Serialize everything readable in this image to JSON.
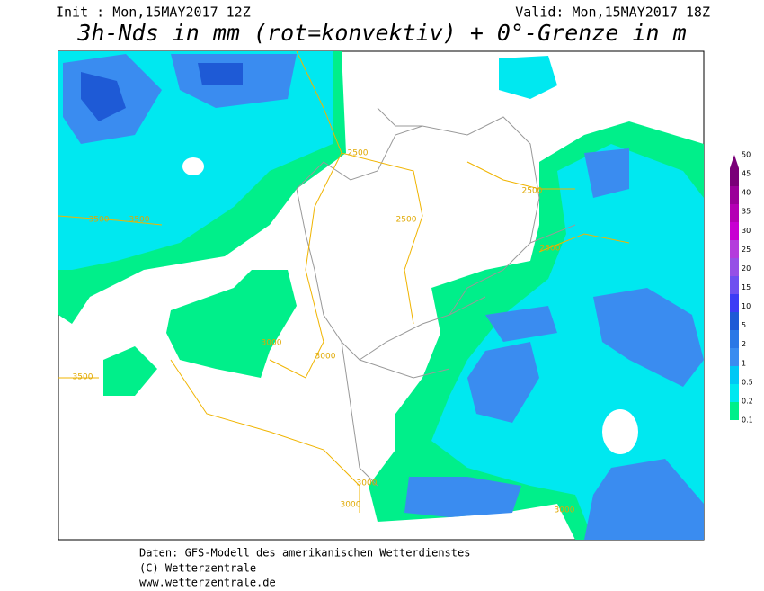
{
  "header": {
    "init": "Init : Mon,15MAY2017 12Z",
    "valid": "Valid: Mon,15MAY2017 18Z",
    "title": "3h-Nds in mm (rot=konvektiv) + 0°-Grenze in m"
  },
  "isoline_labels": [
    "2500",
    "2500",
    "2500",
    "2500",
    "3500",
    "3500",
    "3000",
    "3000",
    "3500",
    "3000",
    "3000",
    "3000"
  ],
  "legend": {
    "labels": [
      "50",
      "45",
      "40",
      "35",
      "30",
      "25",
      "20",
      "15",
      "10",
      "5",
      "2",
      "1",
      "0.5",
      "0.2",
      "0.1"
    ],
    "colors": [
      "#7a0078",
      "#9a0099",
      "#b400b4",
      "#c800d2",
      "#b43cdc",
      "#9650e6",
      "#6e50f0",
      "#3c3cf5",
      "#1e5ad6",
      "#2b78e6",
      "#3a8cf0",
      "#00c8f5",
      "#00e8f0",
      "#00ef8a"
    ]
  },
  "footer": [
    "Daten: GFS-Modell des amerikanischen Wetterdienstes",
    "(C) Wetterzentrale",
    "www.wetterzentrale.de"
  ]
}
